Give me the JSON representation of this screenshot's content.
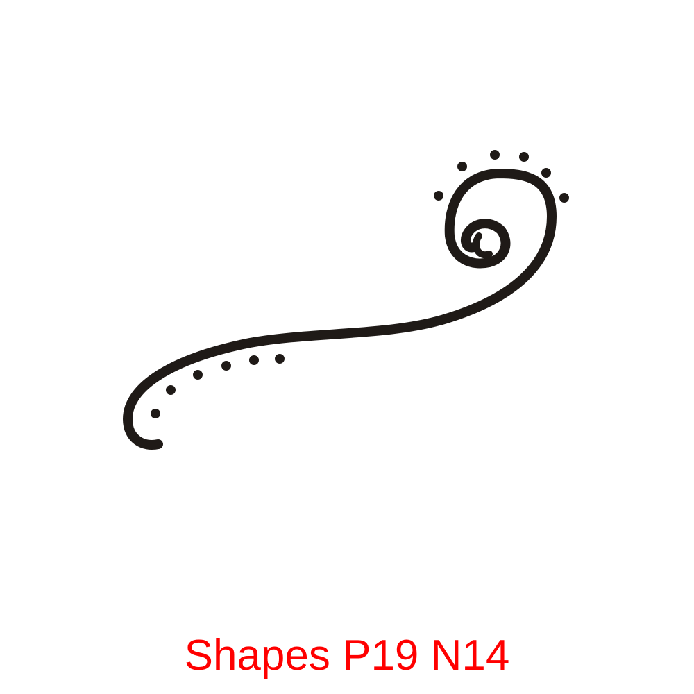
{
  "caption": "Shapes P19 N14",
  "colors": {
    "ink": "#1f1a17",
    "caption": "#ff0000",
    "background": "#ffffff"
  },
  "artwork": {
    "icon": "swirl-flourish-icon"
  }
}
